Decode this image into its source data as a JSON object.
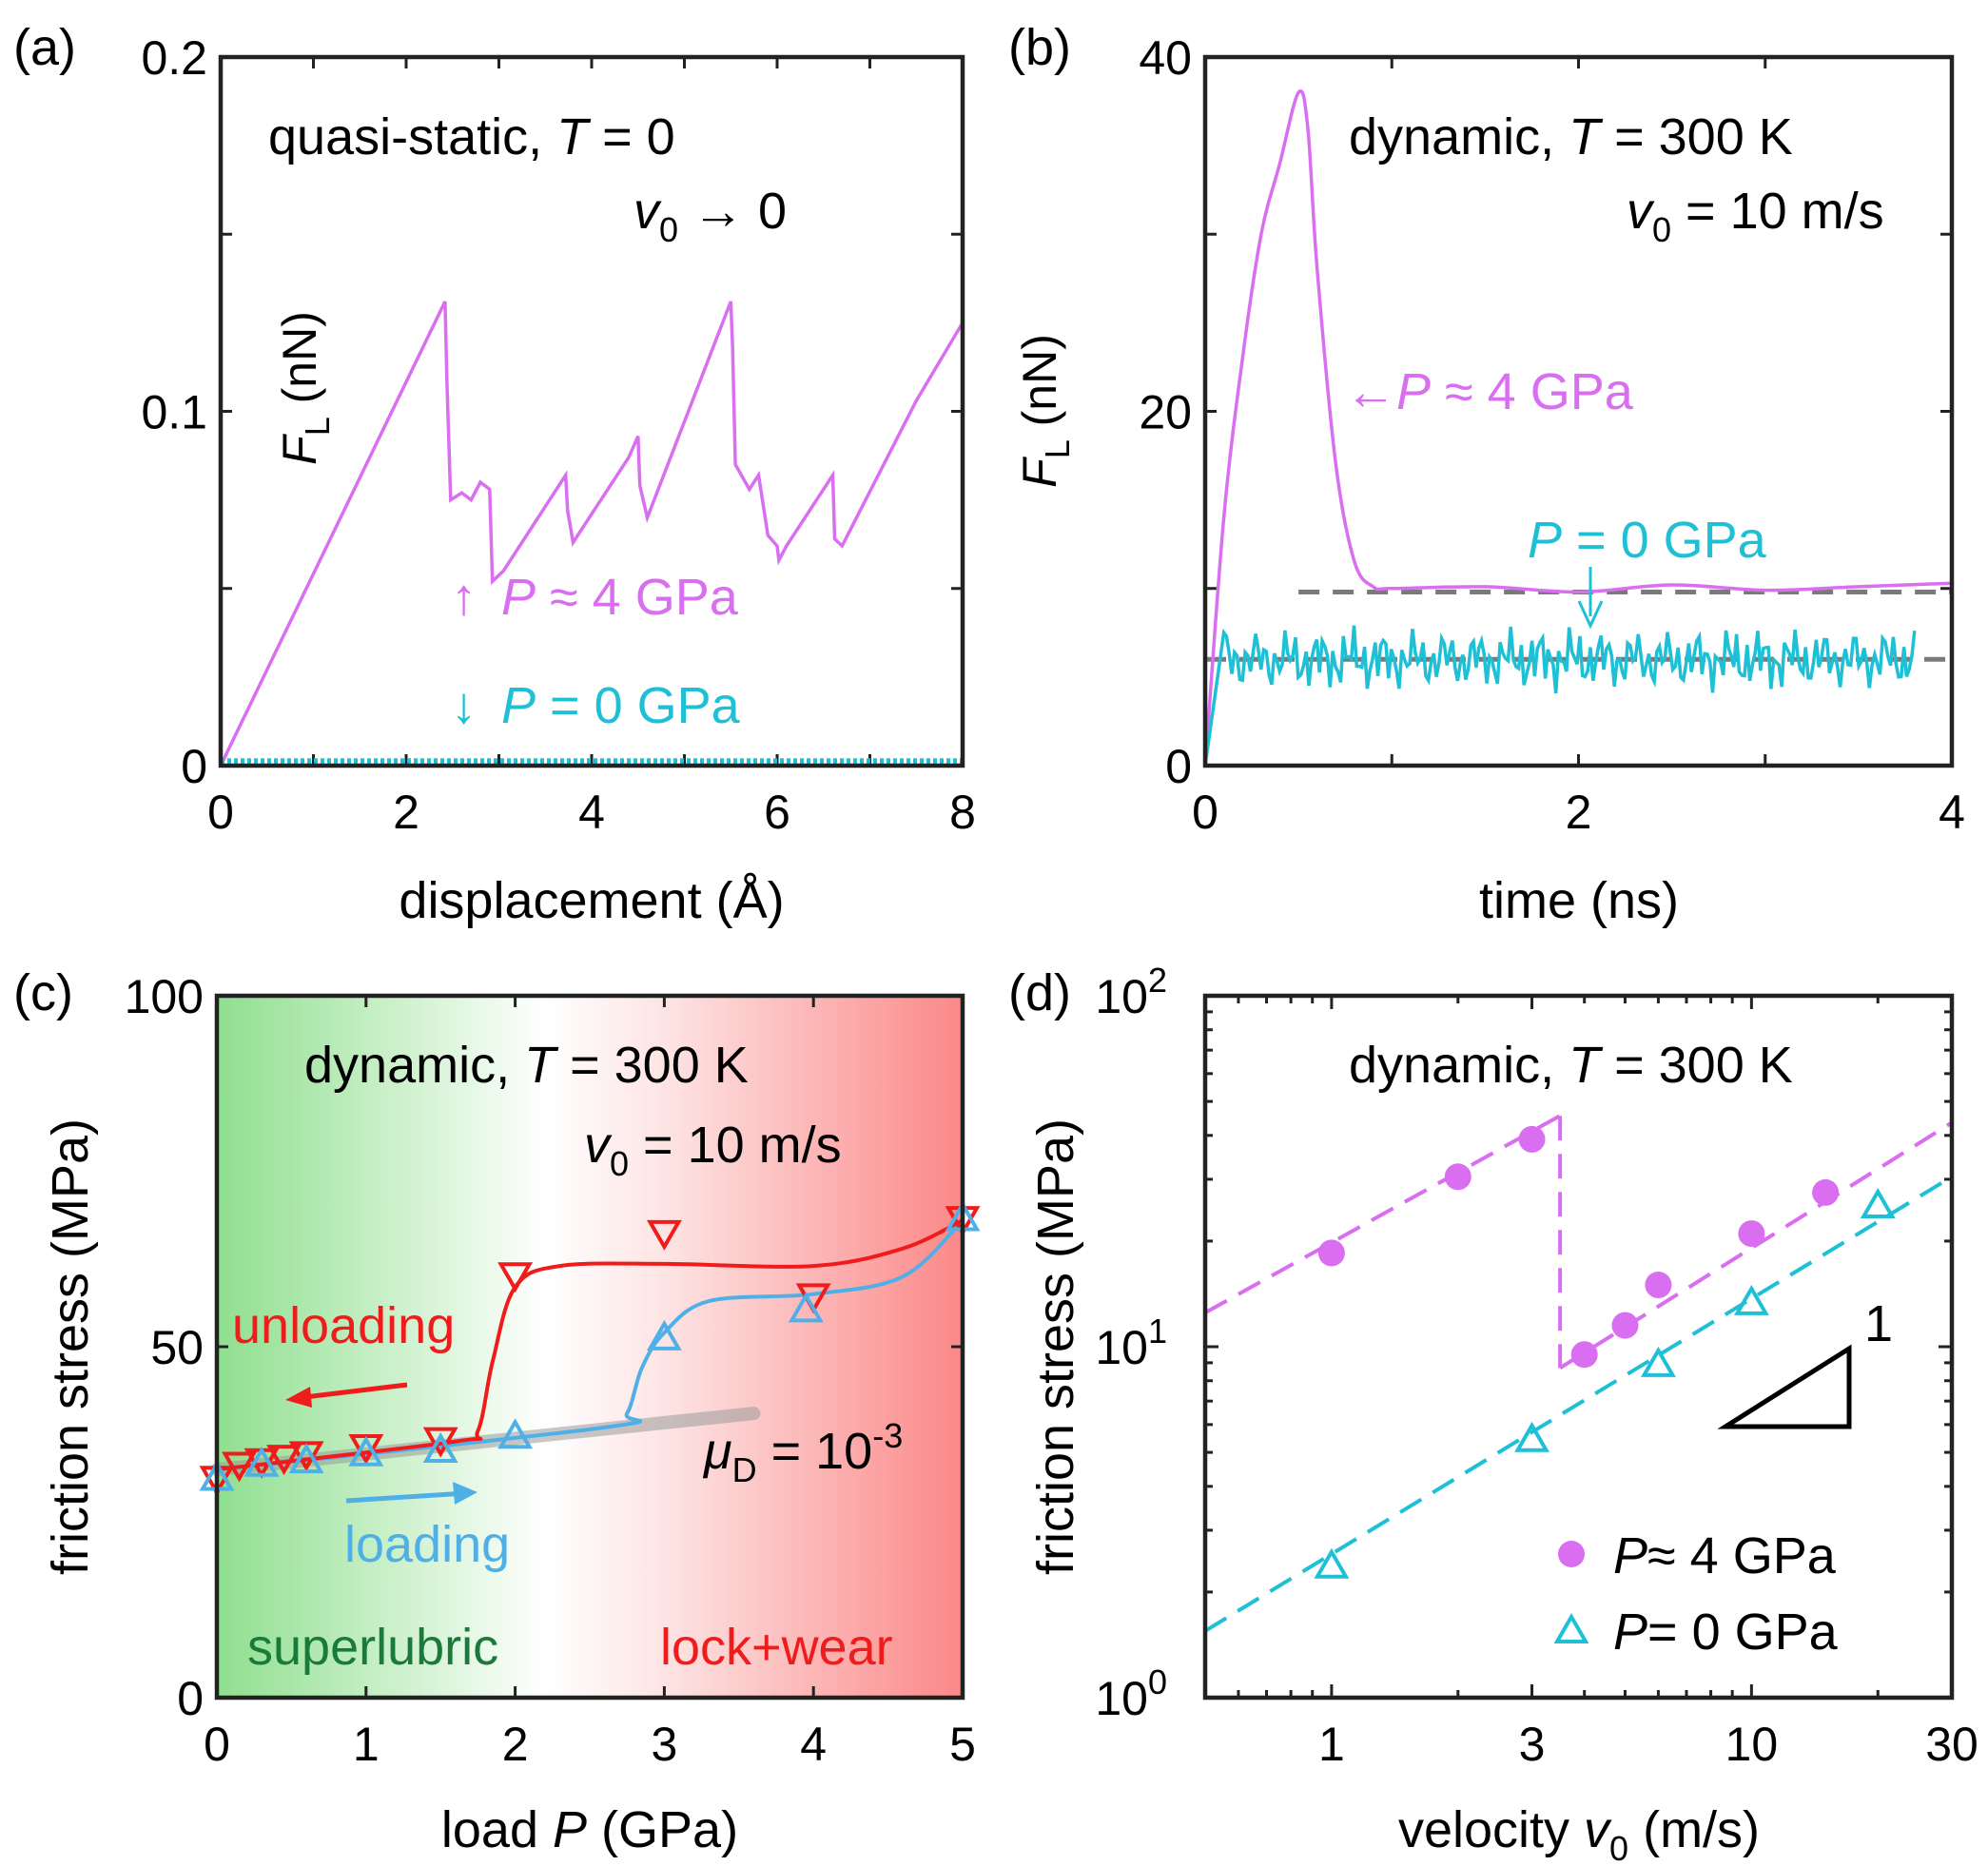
{
  "colors": {
    "magenta": "#d96ff0",
    "cyan": "#1ec0d6",
    "red": "#f01c1c",
    "blue": "#4fb0e8",
    "darkgreen": "#1a7a3a",
    "dashgray": "#7a7a7a"
  },
  "chart_data": [
    {
      "panel": "(a)",
      "type": "line",
      "title": "quasi-static, T = 0",
      "annotation_lines": [
        {
          "prefix": "quasi-static, ",
          "var": "T",
          "suffix": " = 0"
        },
        {
          "var": "v",
          "sub": "0",
          "suffix": " → 0"
        }
      ],
      "xlabel": "displacement (Å)",
      "ylabel": {
        "var": "F",
        "sub": "L",
        "suffix": " (nN)"
      },
      "xlim": [
        0,
        8
      ],
      "ylim": [
        0,
        0.2
      ],
      "xticks": [
        "0",
        "2",
        "4",
        "6",
        "8"
      ],
      "yticks": [
        "0",
        "0.1",
        "0.2"
      ],
      "series": [
        {
          "name": "P ≈ 4 GPa",
          "arrow": "↑",
          "var": "P",
          "suffix": " ≈ 4 GPa",
          "color": "#d96ff0",
          "x": [
            0,
            2.42,
            2.44,
            2.48,
            2.6,
            2.7,
            2.8,
            2.9,
            2.93,
            3.05,
            3.72,
            3.74,
            3.8,
            4.4,
            4.5,
            4.52,
            4.6,
            5.5,
            5.52,
            5.55,
            5.7,
            5.8,
            5.9,
            6.0,
            6.02,
            6.1,
            6.6,
            6.62,
            6.7,
            7.5,
            8.0
          ],
          "y": [
            0,
            0.131,
            0.108,
            0.075,
            0.077,
            0.075,
            0.08,
            0.078,
            0.052,
            0.055,
            0.082,
            0.072,
            0.063,
            0.087,
            0.093,
            0.079,
            0.07,
            0.131,
            0.118,
            0.085,
            0.078,
            0.082,
            0.065,
            0.062,
            0.058,
            0.062,
            0.082,
            0.064,
            0.062,
            0.103,
            0.125
          ]
        },
        {
          "name": "P = 0 GPa",
          "arrow": "↓",
          "var": "P",
          "suffix": " = 0 GPa",
          "color": "#1ec0d6",
          "x": [
            0,
            8
          ],
          "y": [
            0.001,
            0.001
          ]
        }
      ]
    },
    {
      "panel": "(b)",
      "type": "line",
      "title": "dynamic, T = 300 K",
      "annotation_lines": [
        {
          "prefix": "dynamic, ",
          "var": "T",
          "suffix": " = 300 K"
        },
        {
          "var": "v",
          "sub": "0",
          "suffix": " = 10 m/s"
        }
      ],
      "xlabel": "time (ns)",
      "ylabel": {
        "var": "F",
        "sub": "L",
        "suffix": " (nN)"
      },
      "xlim": [
        0,
        4
      ],
      "ylim": [
        0,
        40
      ],
      "xticks": [
        "0",
        "2",
        "4"
      ],
      "yticks": [
        "0",
        "20",
        "40"
      ],
      "series": [
        {
          "name": "P ≈ 4 GPa",
          "arrow": "←",
          "var": "P",
          "suffix": " ≈ 4 GPa",
          "color": "#d96ff0",
          "x": [
            0,
            0.1,
            0.2,
            0.3,
            0.4,
            0.5,
            0.55,
            0.6,
            0.7,
            0.8,
            0.9,
            1.0,
            1.5,
            2.0,
            2.5,
            3.0,
            3.5,
            4.0
          ],
          "y": [
            0,
            14,
            23,
            30,
            34,
            38,
            36,
            28,
            17,
            11.5,
            10.1,
            10.0,
            10.1,
            9.8,
            10.2,
            9.9,
            10.1,
            10.3
          ]
        },
        {
          "name": "P = 0 GPa",
          "arrow": "↓",
          "var": "P",
          "suffix": " = 0 GPa",
          "color": "#1ec0d6",
          "x_range": [
            0,
            3.8
          ],
          "mean": 6.0,
          "rise_end": 0.1
        }
      ],
      "reference_lines": [
        {
          "y": 9.8,
          "x_range": [
            0.5,
            4
          ],
          "style": "dashed"
        },
        {
          "y": 6.0,
          "x_range": [
            0,
            4
          ],
          "style": "dashed"
        }
      ]
    },
    {
      "panel": "(c)",
      "type": "scatter",
      "title": "dynamic, T = 300 K",
      "annotation_lines": [
        {
          "prefix": "dynamic, ",
          "var": "T",
          "suffix": " = 300 K"
        },
        {
          "var": "v",
          "sub": "0",
          "suffix": " = 10 m/s"
        }
      ],
      "xlabel": {
        "prefix": "load ",
        "var": "P",
        "suffix": " (GPa)"
      },
      "ylabel": "friction stress (MPa)",
      "xlim": [
        0,
        5
      ],
      "ylim": [
        0,
        100
      ],
      "xticks": [
        "0",
        "1",
        "2",
        "3",
        "4",
        "5"
      ],
      "yticks": [
        "0",
        "50",
        "100"
      ],
      "regions": [
        {
          "label": "superlubric",
          "color": "#1a7a3a"
        },
        {
          "label": "lock+wear",
          "color": "#f01c1c"
        }
      ],
      "arrows": [
        {
          "label": "unloading",
          "color": "#f01c1c"
        },
        {
          "label": "loading",
          "color": "#4fb0e8"
        }
      ],
      "mu_label": {
        "var": "μ",
        "sub": "D",
        "mid": " = 10",
        "sup": "-3"
      },
      "series": [
        {
          "name": "unloading",
          "marker": "triangle-down",
          "color": "#f01c1c",
          "x": [
            0,
            0.15,
            0.3,
            0.45,
            0.6,
            1.0,
            1.5,
            2.0,
            3.0,
            4.0,
            5.0
          ],
          "y": [
            31,
            33,
            33.5,
            34,
            34.5,
            35.5,
            36.5,
            60,
            66,
            57,
            68
          ]
        },
        {
          "name": "loading",
          "marker": "triangle-up",
          "color": "#4fb0e8",
          "x": [
            0,
            0.3,
            0.6,
            1.0,
            1.5,
            2.0,
            3.0,
            3.95,
            5.0
          ],
          "y": [
            31.5,
            33.5,
            34,
            35,
            35.5,
            37.5,
            51.5,
            55.5,
            68.5
          ]
        }
      ],
      "fits": [
        {
          "name": "unloading fit",
          "x": [
            0,
            1.6,
            1.75,
            1.85,
            2.0,
            2.3,
            3.0,
            4.0,
            4.6,
            5.0
          ],
          "y": [
            32.5,
            36.5,
            38,
            48,
            58.5,
            61.5,
            61.8,
            61.5,
            64,
            68
          ]
        },
        {
          "name": "loading fit",
          "x": [
            0,
            2.6,
            2.75,
            2.85,
            3.0,
            3.3,
            4.0,
            4.6,
            5.0
          ],
          "y": [
            32.5,
            38.5,
            40.5,
            47,
            52,
            56.5,
            57.5,
            60,
            68
          ]
        },
        {
          "name": "linear trend",
          "x": [
            0,
            3.6
          ],
          "y": [
            32.5,
            40.5
          ]
        }
      ]
    },
    {
      "panel": "(d)",
      "type": "scatter",
      "title": "dynamic, T = 300 K",
      "annotation_lines": [
        {
          "prefix": "dynamic, ",
          "var": "T",
          "suffix": " = 300 K"
        }
      ],
      "xlabel": {
        "prefix": "velocity ",
        "var": "v",
        "sub": "0",
        "suffix": " (m/s)"
      },
      "ylabel": "friction stress (MPa)",
      "xscale": "log",
      "yscale": "log",
      "xlim": [
        0.5,
        30
      ],
      "ylim": [
        1,
        100
      ],
      "xticks": [
        "1",
        "3",
        "10",
        "30"
      ],
      "yticks": [
        {
          "base": "10",
          "exp": "0"
        },
        {
          "base": "10",
          "exp": "1"
        },
        {
          "base": "10",
          "exp": "2"
        }
      ],
      "slope_label": "1",
      "series": [
        {
          "name": "P ≈ 4 GPa",
          "var": "P",
          "suffix": "≈ 4 GPa",
          "marker": "circle",
          "color": "#d96ff0",
          "x": [
            1,
            2,
            3,
            4,
            5,
            6,
            10,
            15
          ],
          "y": [
            18.5,
            30.5,
            39,
            9.5,
            11.5,
            15,
            21,
            27.5
          ]
        },
        {
          "name": "P = 0 GPa",
          "var": "P",
          "suffix": "= 0 GPa",
          "marker": "triangle-up",
          "color": "#1ec0d6",
          "x": [
            1,
            3,
            6,
            10,
            20
          ],
          "y": [
            2.4,
            5.5,
            9,
            13.5,
            25.5
          ]
        }
      ],
      "fits": [
        {
          "name": "P≈4 high-friction branch",
          "x": [
            0.5,
            3.5
          ],
          "y": [
            12.5,
            45.5
          ]
        },
        {
          "name": "P≈4 low-friction branch",
          "x": [
            3.5,
            30
          ],
          "y": [
            8.7,
            43.5
          ]
        },
        {
          "name": "P=0 fit",
          "x": [
            0.5,
            30
          ],
          "y": [
            1.55,
            30.5
          ]
        }
      ]
    }
  ]
}
